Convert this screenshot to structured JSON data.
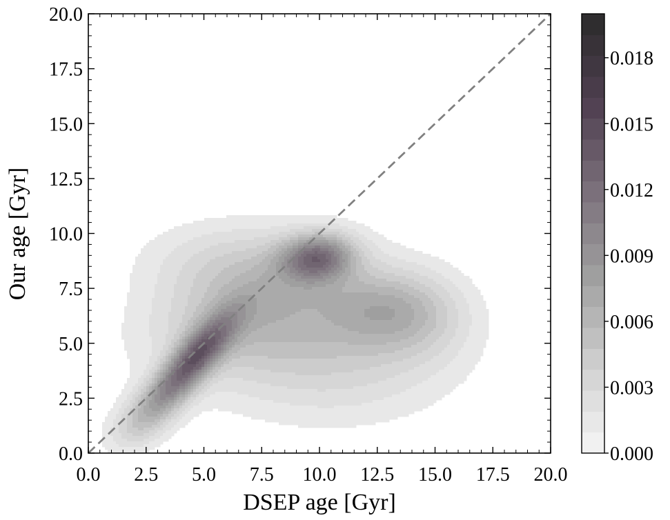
{
  "chart_data": {
    "type": "heatmap",
    "subtype": "kde-filled-contour",
    "title": "",
    "xlabel": "DSEP age [Gyr]",
    "ylabel": "Our age [Gyr]",
    "xlim": [
      0.0,
      20.0
    ],
    "ylim": [
      0.0,
      20.0
    ],
    "x_ticks": [
      "0.0",
      "2.5",
      "5.0",
      "7.5",
      "10.0",
      "12.5",
      "15.0",
      "17.5",
      "20.0"
    ],
    "y_ticks": [
      "0.0",
      "2.5",
      "5.0",
      "7.5",
      "10.0",
      "12.5",
      "15.0",
      "17.5",
      "20.0"
    ],
    "grid": false,
    "reference_line": {
      "style": "dashed",
      "color": "#808080",
      "from": [
        0.0,
        0.0
      ],
      "to": [
        20.0,
        20.0
      ]
    },
    "density_peaks": [
      {
        "x": 4.6,
        "y": 4.3,
        "density": 0.019
      },
      {
        "x": 9.9,
        "y": 8.9,
        "density": 0.019
      },
      {
        "x": 12.7,
        "y": 6.6,
        "density": 0.011
      }
    ],
    "colorbar": {
      "range": [
        0.0,
        0.02
      ],
      "levels": 21,
      "tick_labels": [
        "0.000",
        "0.003",
        "0.006",
        "0.009",
        "0.012",
        "0.015",
        "0.018"
      ],
      "tick_values": [
        0.0,
        0.003,
        0.006,
        0.009,
        0.012,
        0.015,
        0.018
      ],
      "colormap": [
        "#f6f6f6",
        "#cfcfcf",
        "#a0a0a0",
        "#7a6f7a",
        "#4f3f50",
        "#2b2b2b"
      ]
    }
  }
}
